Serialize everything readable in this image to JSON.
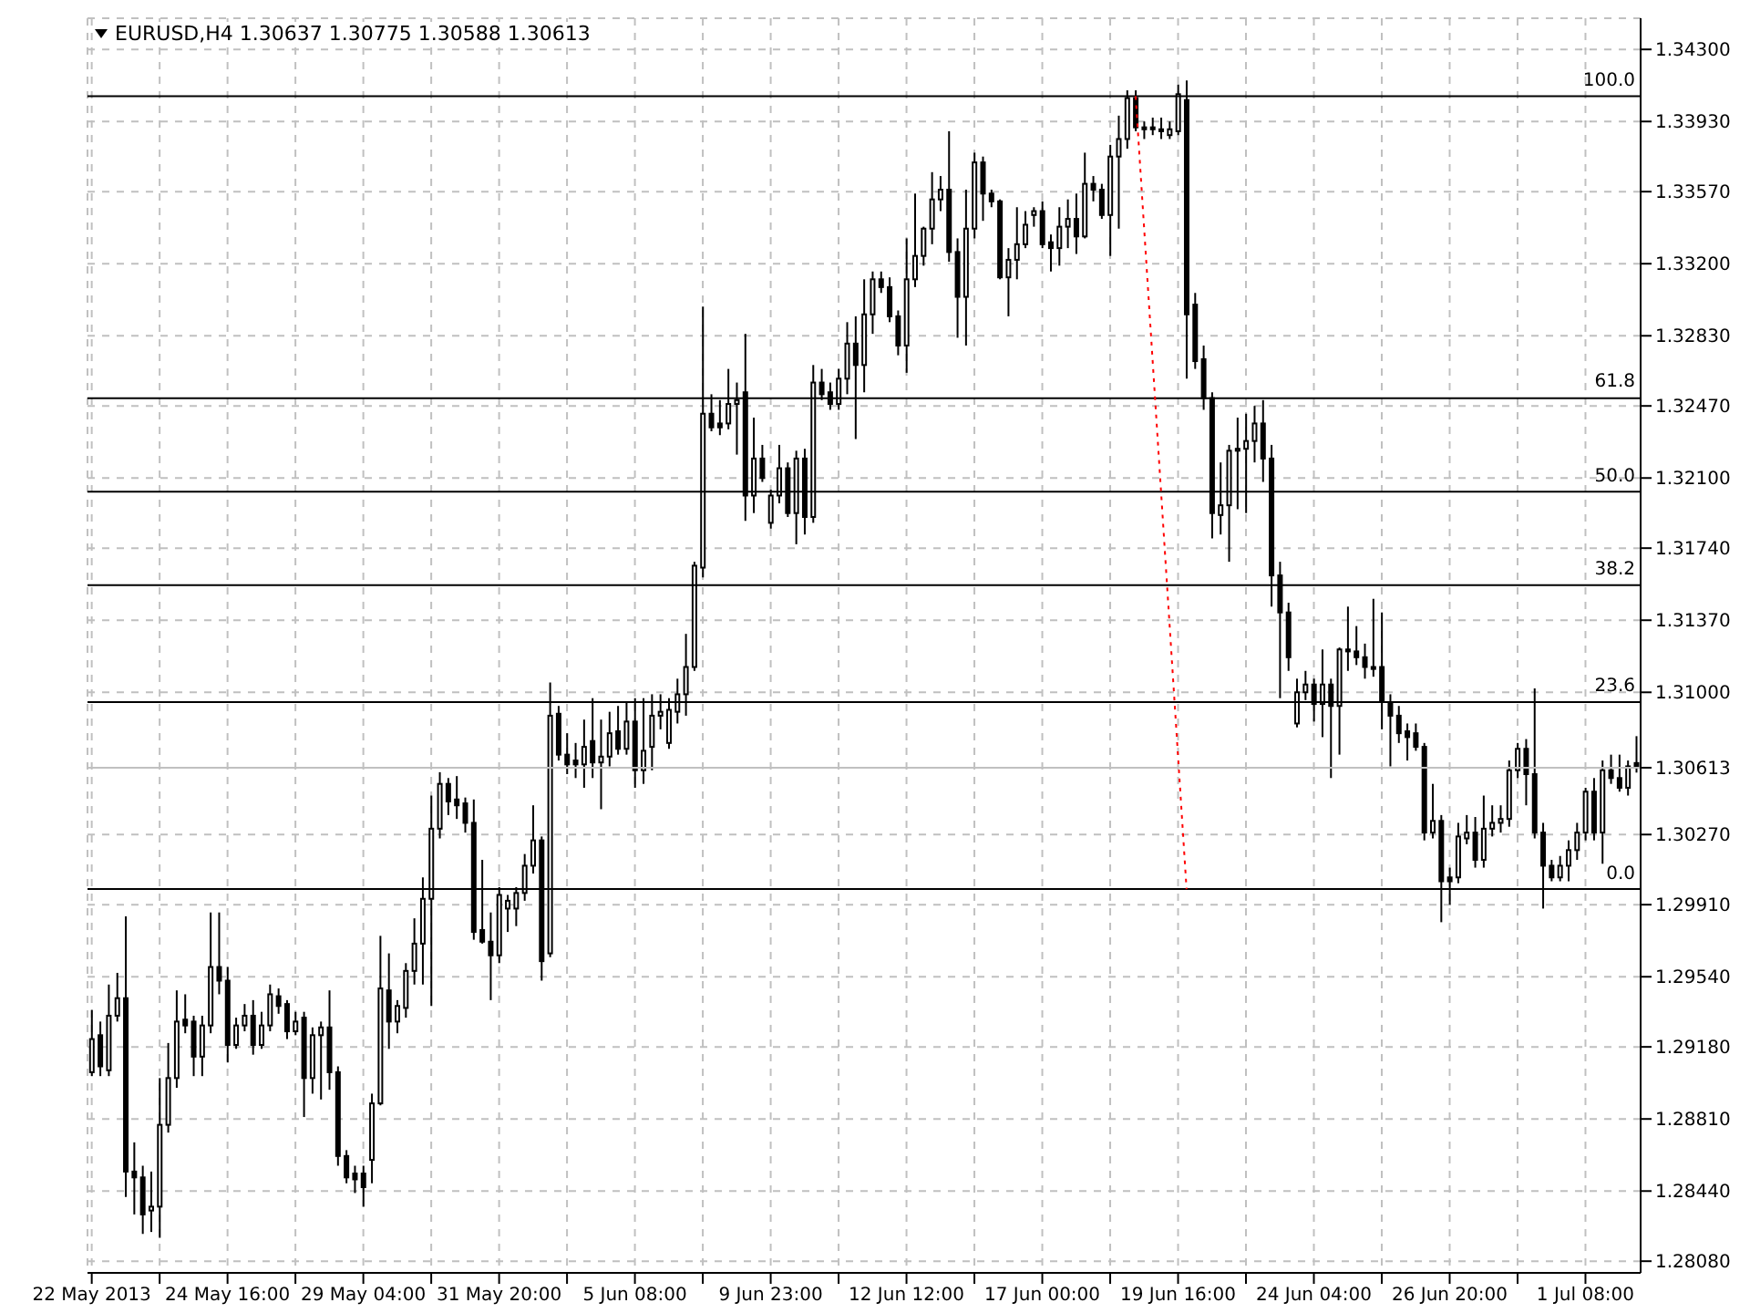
{
  "chart_data": {
    "type": "candlestick",
    "title": "EURUSD,H4  1.30637 1.30775 1.30588 1.30613",
    "color": "#000000",
    "grid": true,
    "categories": [
      "22 May 2013",
      null,
      null,
      null,
      null,
      null,
      null,
      null,
      null,
      null,
      null,
      null,
      null,
      null,
      null,
      null,
      "24 May 16:00",
      null,
      null,
      null,
      null,
      null,
      null,
      null,
      null,
      null,
      null,
      null,
      null,
      null,
      null,
      null,
      "29 May 04:00",
      null,
      null,
      null,
      null,
      null,
      null,
      null,
      null,
      null,
      null,
      null,
      null,
      null,
      null,
      null,
      "31 May 20:00",
      null,
      null,
      null,
      null,
      null,
      null,
      null,
      null,
      null,
      null,
      null,
      null,
      null,
      null,
      null,
      "5 Jun 08:00",
      null,
      null,
      null,
      null,
      null,
      null,
      null,
      null,
      null,
      null,
      null,
      null,
      null,
      null,
      null,
      "9 Jun 23:00",
      null,
      null,
      null,
      null,
      null,
      null,
      null,
      null,
      null,
      null,
      null,
      null,
      null,
      null,
      null,
      "12 Jun 12:00",
      null,
      null,
      null,
      null,
      null,
      null,
      null,
      null,
      null,
      null,
      null,
      null,
      null,
      null,
      null,
      "17 Jun 00:00",
      null,
      null,
      null,
      null,
      null,
      null,
      null,
      null,
      null,
      null,
      null,
      null,
      null,
      null,
      null,
      "19 Jun 16:00",
      null,
      null,
      null,
      null,
      null,
      null,
      null,
      null,
      null,
      null,
      null,
      null,
      null,
      null,
      null,
      "24 Jun 04:00",
      null,
      null,
      null,
      null,
      null,
      null,
      null,
      null,
      null,
      null,
      null,
      null,
      null,
      null,
      null,
      "26 Jun 20:00",
      null,
      null,
      null,
      null,
      null,
      null,
      null,
      null,
      null,
      null,
      null,
      null,
      null,
      null,
      null,
      "1 Jul 08:00",
      null,
      null,
      null,
      null,
      null,
      null
    ],
    "ohlc": [
      [
        1.2905,
        1.2937,
        1.2903,
        1.2922
      ],
      [
        1.2924,
        1.2931,
        1.2903,
        1.2908
      ],
      [
        1.2906,
        1.295,
        1.2903,
        1.2934
      ],
      [
        1.2934,
        1.2956,
        1.2931,
        1.2943
      ],
      [
        1.2943,
        1.2985,
        1.2841,
        1.2854
      ],
      [
        1.2854,
        1.2869,
        1.2832,
        1.2851
      ],
      [
        1.2851,
        1.2857,
        1.2822,
        1.2832
      ],
      [
        1.2834,
        1.2854,
        1.2823,
        1.2836
      ],
      [
        1.2836,
        1.2902,
        1.282,
        1.2878
      ],
      [
        1.2878,
        1.292,
        1.2874,
        1.2902
      ],
      [
        1.2902,
        1.2947,
        1.2897,
        1.2931
      ],
      [
        1.2932,
        1.2945,
        1.2925,
        1.2929
      ],
      [
        1.2931,
        1.2934,
        1.2903,
        1.2913
      ],
      [
        1.2913,
        1.2934,
        1.2903,
        1.2929
      ],
      [
        1.2929,
        1.2987,
        1.2925,
        1.2959
      ],
      [
        1.2959,
        1.2987,
        1.2945,
        1.2952
      ],
      [
        1.2952,
        1.2959,
        1.291,
        1.2919
      ],
      [
        1.2919,
        1.2933,
        1.2917,
        1.2929
      ],
      [
        1.2929,
        1.294,
        1.2926,
        1.2934
      ],
      [
        1.2934,
        1.2942,
        1.2914,
        1.2919
      ],
      [
        1.2919,
        1.2936,
        1.2917,
        1.2929
      ],
      [
        1.2929,
        1.295,
        1.2926,
        1.2945
      ],
      [
        1.2944,
        1.2948,
        1.2935,
        1.2939
      ],
      [
        1.294,
        1.2942,
        1.2922,
        1.2926
      ],
      [
        1.2926,
        1.2936,
        1.2924,
        1.2931
      ],
      [
        1.2933,
        1.2936,
        1.2882,
        1.2902
      ],
      [
        1.2902,
        1.2928,
        1.2894,
        1.2924
      ],
      [
        1.2924,
        1.2931,
        1.2891,
        1.2928
      ],
      [
        1.2928,
        1.2947,
        1.2896,
        1.2905
      ],
      [
        1.2905,
        1.2908,
        1.2857,
        1.2862
      ],
      [
        1.2862,
        1.2865,
        1.2848,
        1.2851
      ],
      [
        1.2853,
        1.2857,
        1.2843,
        1.285
      ],
      [
        1.2853,
        1.2857,
        1.2836,
        1.2846
      ],
      [
        1.286,
        1.2894,
        1.2848,
        1.2889
      ],
      [
        1.2889,
        1.2975,
        1.2888,
        1.2948
      ],
      [
        1.2947,
        1.2966,
        1.2917,
        1.2931
      ],
      [
        1.2931,
        1.2942,
        1.2925,
        1.2939
      ],
      [
        1.2938,
        1.2961,
        1.2933,
        1.2957
      ],
      [
        1.2957,
        1.2984,
        1.295,
        1.2971
      ],
      [
        1.2971,
        1.3005,
        1.295,
        1.2994
      ],
      [
        1.2994,
        1.3047,
        1.2939,
        1.303
      ],
      [
        1.303,
        1.3059,
        1.3025,
        1.3053
      ],
      [
        1.3053,
        1.3056,
        1.3037,
        1.3044
      ],
      [
        1.3045,
        1.3057,
        1.3035,
        1.3042
      ],
      [
        1.3043,
        1.3046,
        1.3028,
        1.3033
      ],
      [
        1.3033,
        1.3045,
        1.2973,
        1.2977
      ],
      [
        1.2978,
        1.3014,
        1.2971,
        1.2972
      ],
      [
        1.2972,
        1.2987,
        1.2942,
        1.2965
      ],
      [
        1.2965,
        1.3,
        1.2961,
        1.2996
      ],
      [
        1.2989,
        1.2996,
        1.2977,
        1.2993
      ],
      [
        1.2989,
        1.3,
        1.298,
        1.2997
      ],
      [
        1.2997,
        1.3017,
        1.2993,
        1.3011
      ],
      [
        1.3011,
        1.3042,
        1.3007,
        1.3024
      ],
      [
        1.3024,
        1.3026,
        1.2952,
        1.2962
      ],
      [
        1.2966,
        1.3105,
        1.2964,
        1.3088
      ],
      [
        1.3089,
        1.3093,
        1.3065,
        1.3068
      ],
      [
        1.3068,
        1.3079,
        1.3058,
        1.3063
      ],
      [
        1.3065,
        1.3074,
        1.3056,
        1.3063
      ],
      [
        1.3063,
        1.3086,
        1.3051,
        1.3072
      ],
      [
        1.3075,
        1.3097,
        1.3056,
        1.3064
      ],
      [
        1.3064,
        1.3086,
        1.304,
        1.3067
      ],
      [
        1.3067,
        1.309,
        1.3062,
        1.3079
      ],
      [
        1.308,
        1.3093,
        1.3068,
        1.3071
      ],
      [
        1.3071,
        1.3095,
        1.3068,
        1.3085
      ],
      [
        1.3085,
        1.3097,
        1.3051,
        1.306
      ],
      [
        1.306,
        1.3097,
        1.3053,
        1.307
      ],
      [
        1.3072,
        1.3099,
        1.306,
        1.3088
      ],
      [
        1.3088,
        1.3099,
        1.3081,
        1.309
      ],
      [
        1.3074,
        1.3097,
        1.3071,
        1.3091
      ],
      [
        1.309,
        1.3107,
        1.3084,
        1.3099
      ],
      [
        1.3099,
        1.313,
        1.3088,
        1.3113
      ],
      [
        1.3113,
        1.3167,
        1.3111,
        1.3165
      ],
      [
        1.3164,
        1.3298,
        1.3159,
        1.3243
      ],
      [
        1.3243,
        1.3253,
        1.3234,
        1.3236
      ],
      [
        1.3238,
        1.325,
        1.3232,
        1.3236
      ],
      [
        1.3238,
        1.3266,
        1.3235,
        1.3248
      ],
      [
        1.3248,
        1.3259,
        1.3222,
        1.325
      ],
      [
        1.3254,
        1.3284,
        1.3188,
        1.3201
      ],
      [
        1.3201,
        1.3241,
        1.3192,
        1.322
      ],
      [
        1.322,
        1.3227,
        1.3208,
        1.321
      ],
      [
        1.3187,
        1.3204,
        1.3184,
        1.3201
      ],
      [
        1.3201,
        1.3227,
        1.3197,
        1.3215
      ],
      [
        1.3215,
        1.3218,
        1.319,
        1.3192
      ],
      [
        1.3192,
        1.3224,
        1.3176,
        1.322
      ],
      [
        1.322,
        1.3225,
        1.3181,
        1.319
      ],
      [
        1.319,
        1.3268,
        1.3187,
        1.3259
      ],
      [
        1.3259,
        1.3266,
        1.325,
        1.3253
      ],
      [
        1.3254,
        1.3259,
        1.3245,
        1.3248
      ],
      [
        1.3248,
        1.3266,
        1.3245,
        1.3261
      ],
      [
        1.3261,
        1.329,
        1.3253,
        1.3279
      ],
      [
        1.3279,
        1.3293,
        1.323,
        1.3268
      ],
      [
        1.3268,
        1.3312,
        1.3254,
        1.3294
      ],
      [
        1.3294,
        1.3316,
        1.3284,
        1.3312
      ],
      [
        1.3312,
        1.3316,
        1.3305,
        1.3308
      ],
      [
        1.3308,
        1.3313,
        1.329,
        1.3293
      ],
      [
        1.3293,
        1.3296,
        1.3273,
        1.3278
      ],
      [
        1.3278,
        1.3333,
        1.3264,
        1.3312
      ],
      [
        1.3312,
        1.3356,
        1.3308,
        1.3324
      ],
      [
        1.3324,
        1.3339,
        1.3319,
        1.3338
      ],
      [
        1.3338,
        1.3367,
        1.333,
        1.3353
      ],
      [
        1.3353,
        1.3365,
        1.3347,
        1.3358
      ],
      [
        1.3358,
        1.3388,
        1.3321,
        1.3326
      ],
      [
        1.3326,
        1.3333,
        1.3282,
        1.3303
      ],
      [
        1.3303,
        1.3358,
        1.3278,
        1.3338
      ],
      [
        1.3338,
        1.3377,
        1.3333,
        1.3372
      ],
      [
        1.3372,
        1.3375,
        1.3342,
        1.3356
      ],
      [
        1.3356,
        1.3358,
        1.3349,
        1.3352
      ],
      [
        1.3352,
        1.3353,
        1.3312,
        1.3313
      ],
      [
        1.3313,
        1.3328,
        1.3293,
        1.3322
      ],
      [
        1.3322,
        1.3349,
        1.3312,
        1.333
      ],
      [
        1.333,
        1.3347,
        1.3328,
        1.334
      ],
      [
        1.3345,
        1.3349,
        1.3339,
        1.3347
      ],
      [
        1.3347,
        1.3352,
        1.3328,
        1.333
      ],
      [
        1.3331,
        1.3335,
        1.3316,
        1.3328
      ],
      [
        1.3328,
        1.3349,
        1.3319,
        1.3339
      ],
      [
        1.3339,
        1.3353,
        1.3328,
        1.3343
      ],
      [
        1.3343,
        1.3356,
        1.3325,
        1.3334
      ],
      [
        1.3334,
        1.3377,
        1.3333,
        1.3361
      ],
      [
        1.3361,
        1.3365,
        1.3352,
        1.3358
      ],
      [
        1.3358,
        1.3361,
        1.3343,
        1.3345
      ],
      [
        1.3345,
        1.3381,
        1.3324,
        1.3375
      ],
      [
        1.3375,
        1.3396,
        1.3338,
        1.3384
      ],
      [
        1.3384,
        1.3409,
        1.3379,
        1.3405
      ],
      [
        1.3405,
        1.3409,
        1.3388,
        1.339
      ],
      [
        1.339,
        1.3393,
        1.3384,
        1.3389
      ],
      [
        1.339,
        1.3395,
        1.3386,
        1.3389
      ],
      [
        1.3389,
        1.3395,
        1.3384,
        1.3388
      ],
      [
        1.3386,
        1.3393,
        1.3384,
        1.3389
      ],
      [
        1.3388,
        1.3412,
        1.3386,
        1.3407
      ],
      [
        1.3404,
        1.3414,
        1.3261,
        1.3294
      ],
      [
        1.3299,
        1.3305,
        1.3266,
        1.327
      ],
      [
        1.3271,
        1.3278,
        1.3245,
        1.3251
      ],
      [
        1.3251,
        1.3254,
        1.3179,
        1.3192
      ],
      [
        1.3191,
        1.3218,
        1.3181,
        1.3196
      ],
      [
        1.3196,
        1.3227,
        1.3167,
        1.3224
      ],
      [
        1.3224,
        1.3241,
        1.3194,
        1.3225
      ],
      [
        1.3225,
        1.3243,
        1.3192,
        1.3229
      ],
      [
        1.3229,
        1.3247,
        1.3218,
        1.3238
      ],
      [
        1.3238,
        1.325,
        1.3208,
        1.322
      ],
      [
        1.322,
        1.3227,
        1.3144,
        1.316
      ],
      [
        1.316,
        1.3167,
        1.3097,
        1.3141
      ],
      [
        1.3141,
        1.3146,
        1.3111,
        1.3118
      ],
      [
        1.3084,
        1.3107,
        1.3082,
        1.31
      ],
      [
        1.31,
        1.3111,
        1.3096,
        1.3104
      ],
      [
        1.3104,
        1.3107,
        1.3085,
        1.3094
      ],
      [
        1.3094,
        1.3122,
        1.3077,
        1.3104
      ],
      [
        1.3104,
        1.3107,
        1.3056,
        1.3093
      ],
      [
        1.3093,
        1.3123,
        1.3068,
        1.3122
      ],
      [
        1.3122,
        1.3144,
        1.3111,
        1.3121
      ],
      [
        1.3121,
        1.3134,
        1.3114,
        1.3118
      ],
      [
        1.3118,
        1.3125,
        1.3107,
        1.3113
      ],
      [
        1.3113,
        1.3148,
        1.3108,
        1.3112
      ],
      [
        1.3113,
        1.3141,
        1.3081,
        1.3095
      ],
      [
        1.3095,
        1.3099,
        1.3062,
        1.3088
      ],
      [
        1.3088,
        1.3093,
        1.3074,
        1.3079
      ],
      [
        1.308,
        1.3084,
        1.3065,
        1.3077
      ],
      [
        1.3079,
        1.3084,
        1.307,
        1.3072
      ],
      [
        1.3072,
        1.3074,
        1.3024,
        1.3028
      ],
      [
        1.3028,
        1.3053,
        1.3025,
        1.3034
      ],
      [
        1.3034,
        1.3037,
        1.2982,
        1.3003
      ],
      [
        1.3005,
        1.301,
        1.2991,
        1.3003
      ],
      [
        1.3005,
        1.3033,
        1.3002,
        1.3026
      ],
      [
        1.3025,
        1.3037,
        1.3022,
        1.3028
      ],
      [
        1.3028,
        1.3036,
        1.301,
        1.3014
      ],
      [
        1.3014,
        1.3047,
        1.301,
        1.303
      ],
      [
        1.303,
        1.3042,
        1.3026,
        1.3033
      ],
      [
        1.3033,
        1.3042,
        1.3028,
        1.3035
      ],
      [
        1.3035,
        1.3065,
        1.3031,
        1.306
      ],
      [
        1.306,
        1.3074,
        1.3056,
        1.3071
      ],
      [
        1.3071,
        1.3076,
        1.3042,
        1.3058
      ],
      [
        1.3058,
        1.3102,
        1.3025,
        1.3028
      ],
      [
        1.3028,
        1.3033,
        1.2989,
        1.3011
      ],
      [
        1.3011,
        1.3014,
        1.3003,
        1.3005
      ],
      [
        1.3005,
        1.3016,
        1.3003,
        1.3011
      ],
      [
        1.3011,
        1.3024,
        1.3003,
        1.3019
      ],
      [
        1.3019,
        1.3033,
        1.3014,
        1.3028
      ],
      [
        1.3028,
        1.3051,
        1.3024,
        1.3049
      ],
      [
        1.3049,
        1.3056,
        1.3024,
        1.3028
      ],
      [
        1.3028,
        1.3065,
        1.3012,
        1.306
      ],
      [
        1.306,
        1.3068,
        1.3053,
        1.3056
      ],
      [
        1.3056,
        1.3068,
        1.3049,
        1.3051
      ],
      [
        1.3051,
        1.3065,
        1.3047,
        1.3062
      ],
      [
        1.30637,
        1.30775,
        1.30588,
        1.30613
      ]
    ],
    "series": [
      {
        "type": "line",
        "color": "#ff0000",
        "line_style": "dotted",
        "marker": "none",
        "values": [
          null,
          null,
          null,
          null,
          null,
          null,
          null,
          null,
          null,
          null,
          null,
          null,
          null,
          null,
          null,
          null,
          null,
          null,
          null,
          null,
          null,
          null,
          null,
          null,
          null,
          null,
          null,
          null,
          null,
          null,
          null,
          null,
          null,
          null,
          null,
          null,
          null,
          null,
          null,
          null,
          null,
          null,
          null,
          null,
          null,
          null,
          null,
          null,
          null,
          null,
          null,
          null,
          null,
          null,
          null,
          null,
          null,
          null,
          null,
          null,
          null,
          null,
          null,
          null,
          null,
          null,
          null,
          null,
          null,
          null,
          null,
          null,
          null,
          null,
          null,
          null,
          null,
          null,
          null,
          null,
          null,
          null,
          null,
          null,
          null,
          null,
          null,
          null,
          null,
          null,
          null,
          null,
          null,
          null,
          null,
          null,
          null,
          null,
          null,
          null,
          null,
          null,
          null,
          null,
          null,
          null,
          null,
          null,
          null,
          null,
          null,
          null,
          null,
          null,
          null,
          null,
          null,
          null,
          null,
          null,
          null,
          null,
          null,
          1.3406,
          null,
          null,
          null,
          null,
          null,
          1.2999,
          null,
          null,
          null,
          null,
          null,
          null,
          null,
          null,
          null,
          null,
          null,
          null,
          null,
          null,
          null,
          null,
          null,
          null,
          null,
          null,
          null,
          null,
          null,
          null,
          null,
          null,
          null,
          null,
          null,
          null,
          null,
          null,
          null,
          null,
          null,
          null,
          null,
          null,
          null,
          null,
          null,
          null,
          null,
          null,
          null,
          null,
          null,
          null,
          null,
          null,
          null,
          null,
          null
        ]
      }
    ],
    "ylim": [
      1.2802,
      1.3446
    ],
    "yticks": [
      {
        "value": 1.2808,
        "label": "1.28080"
      },
      {
        "value": 1.2844,
        "label": "1.28440"
      },
      {
        "value": 1.2881,
        "label": "1.28810"
      },
      {
        "value": 1.2918,
        "label": "1.29180"
      },
      {
        "value": 1.2954,
        "label": "1.29540"
      },
      {
        "value": 1.2991,
        "label": "1.29910"
      },
      {
        "value": 1.3027,
        "label": "1.30270"
      },
      1.30613,
      {
        "value": 1.31,
        "label": "1.31000"
      },
      {
        "value": 1.3137,
        "label": "1.31370"
      },
      {
        "value": 1.3174,
        "label": "1.31740"
      },
      {
        "value": 1.321,
        "label": "1.32100"
      },
      {
        "value": 1.3247,
        "label": "1.32470"
      },
      {
        "value": 1.3283,
        "label": "1.32830"
      },
      {
        "value": 1.332,
        "label": "1.33200"
      },
      {
        "value": 1.3357,
        "label": "1.33570"
      },
      {
        "value": 1.3393,
        "label": "1.33930"
      },
      {
        "value": 1.343,
        "label": "1.34300"
      }
    ],
    "annotations": [
      {
        "text": "100.0",
        "y": 1.3406
      },
      {
        "text": "61.8",
        "y": 1.3251
      },
      {
        "text": "50.0",
        "y": 1.3203
      },
      {
        "text": "38.2",
        "y": 1.3155
      },
      {
        "text": "23.6",
        "y": 1.3095
      },
      {
        "text": "0.0",
        "y": 1.2999
      }
    ],
    "ref_lines": [
      {
        "axis": "y",
        "value": 1.3406,
        "color": "#000000"
      },
      {
        "axis": "y",
        "value": 1.3251,
        "color": "#000000"
      },
      {
        "axis": "y",
        "value": 1.3203,
        "color": "#000000"
      },
      {
        "axis": "y",
        "value": 1.3155,
        "color": "#000000"
      },
      {
        "axis": "y",
        "value": 1.3095,
        "color": "#000000"
      },
      {
        "axis": "y",
        "value": 1.2999,
        "color": "#000000"
      },
      {
        "axis": "y",
        "value": 1.30613,
        "color": "#c0c0c0"
      }
    ]
  }
}
